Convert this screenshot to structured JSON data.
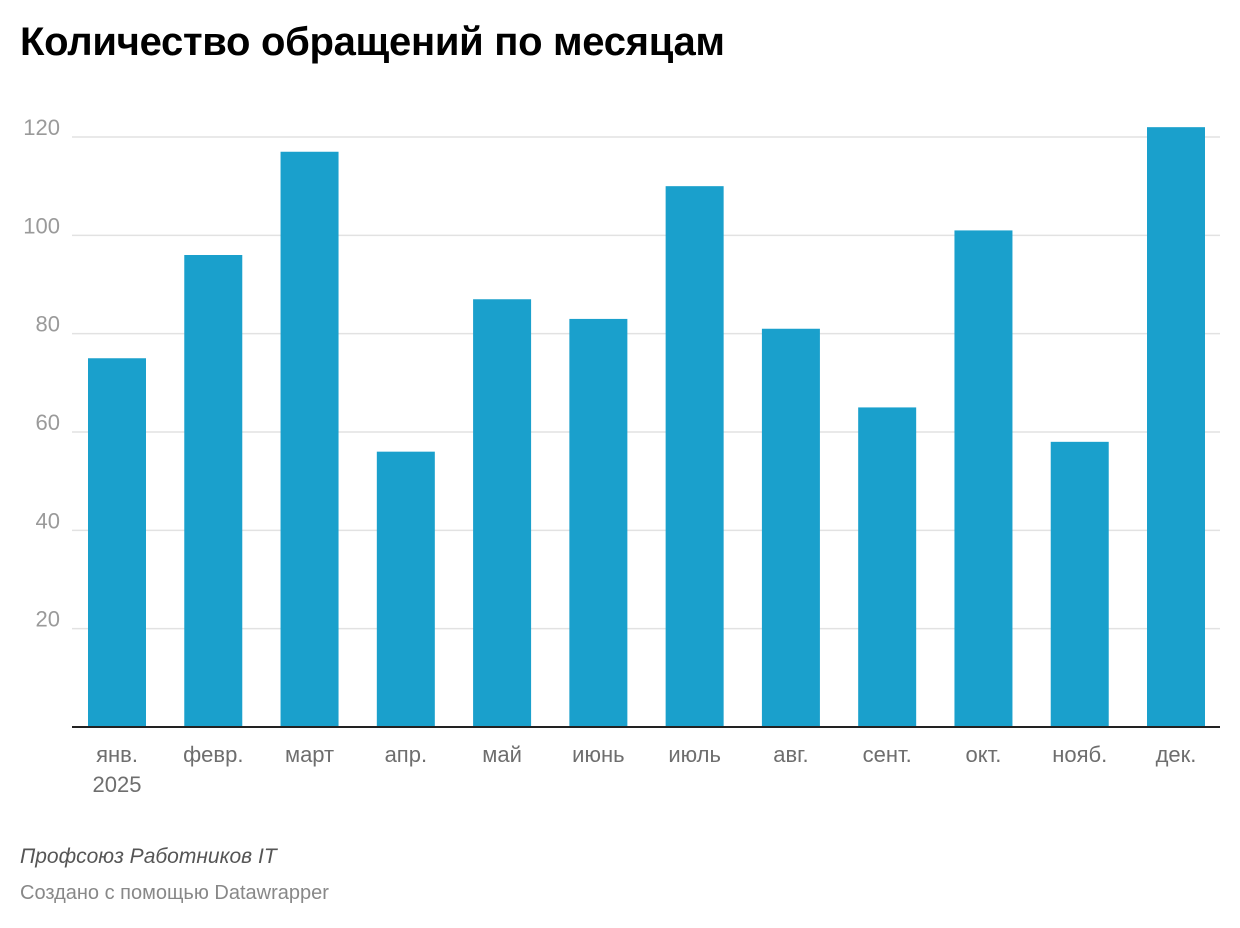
{
  "chart_data": {
    "type": "bar",
    "title": "Количество обращений по месяцам",
    "categories": [
      "янв.",
      "февр.",
      "март",
      "апр.",
      "май",
      "июнь",
      "июль",
      "авг.",
      "сент.",
      "окт.",
      "нояб.",
      "дек."
    ],
    "first_category_sublabel": "2025",
    "values": [
      75,
      96,
      117,
      56,
      87,
      83,
      110,
      81,
      65,
      101,
      58,
      122
    ],
    "yticks": [
      20,
      40,
      60,
      80,
      100,
      120
    ],
    "ylim": [
      0,
      120
    ],
    "xlabel": "",
    "ylabel": "",
    "grid": true,
    "bar_color": "#1aa0cc"
  },
  "footer": {
    "source": "Профсоюз Работников IT",
    "credit": "Создано с помощью Datawrapper"
  }
}
